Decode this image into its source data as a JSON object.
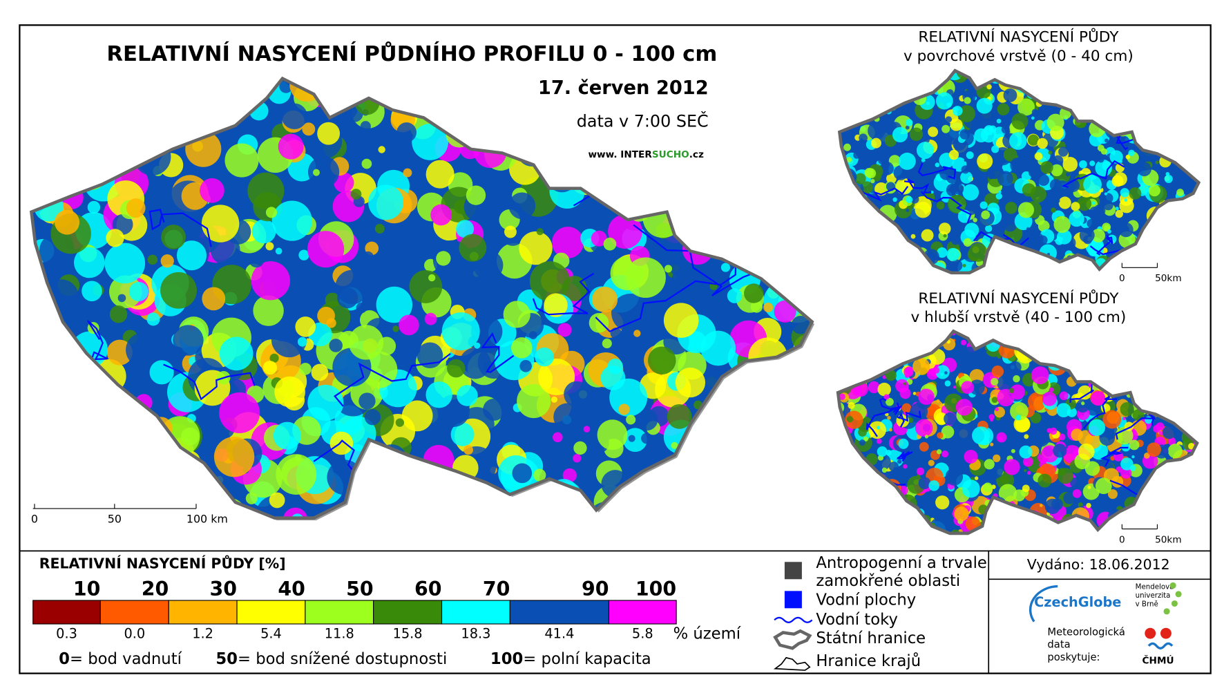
{
  "main_map": {
    "title": "RELATIVNÍ NASYCENÍ PŮDNÍHO PROFILU 0 - 100 cm",
    "date": "17. červen 2012",
    "time": "data v 7:00 SEČ",
    "website_prefix": "www. INTER",
    "website_highlight": "SUCHO",
    "website_suffix": ".cz",
    "scale_labels": [
      "0",
      "50",
      "100 km"
    ]
  },
  "surface_map": {
    "title_line1": "RELATIVNÍ NASYCENÍ PŮDY",
    "title_line2": "v povrchové vrstvě (0 - 40 cm)",
    "scale_labels": [
      "0",
      "50km"
    ]
  },
  "deep_map": {
    "title_line1": "RELATIVNÍ NASYCENÍ PŮDY",
    "title_line2": "v hlubší vrstvě (40 - 100 cm)",
    "scale_labels": [
      "0",
      "50km"
    ]
  },
  "legend": {
    "title": "RELATIVNÍ NASYCENÍ PŮDY [%]",
    "thresholds": [
      "10",
      "20",
      "30",
      "40",
      "50",
      "60",
      "70",
      "90",
      "100"
    ],
    "classes": [
      {
        "color": "#9b0000",
        "share": "0.3"
      },
      {
        "color": "#ff5a00",
        "share": "0.0"
      },
      {
        "color": "#ffb400",
        "share": "1.2"
      },
      {
        "color": "#ffff00",
        "share": "5.4"
      },
      {
        "color": "#9cff1e",
        "share": "11.8"
      },
      {
        "color": "#3a8a0a",
        "share": "15.8"
      },
      {
        "color": "#00ffff",
        "share": "18.3"
      },
      {
        "color": "#0a4fb4",
        "share": "41.4"
      },
      {
        "color": "#ff00ff",
        "share": "5.8"
      }
    ],
    "share_unit": "% území",
    "notes": [
      {
        "key": "0",
        "text": "= bod vadnutí"
      },
      {
        "key": "50",
        "text": "= bod snížené dostupnosti"
      },
      {
        "key": "100",
        "text": "= polní kapacita"
      }
    ]
  },
  "symbols": [
    {
      "line1": "Antropogenní a trvale",
      "line2": "zamokřené oblasti"
    },
    {
      "line1": "Vodní plochy"
    },
    {
      "line1": "Vodní toky"
    },
    {
      "line1": "Státní hranice"
    },
    {
      "line1": "Hranice krajů"
    }
  ],
  "footer": {
    "issued": "Vydáno: 18.06.2012",
    "logo_czechglobe": "CzechGlobe",
    "logo_mendelu": [
      "Mendelova",
      "univerzita",
      "v Brně"
    ],
    "provider": [
      "Meteorologická",
      "data",
      "poskytuje:"
    ],
    "logo_chmu": "ČHMÚ"
  }
}
